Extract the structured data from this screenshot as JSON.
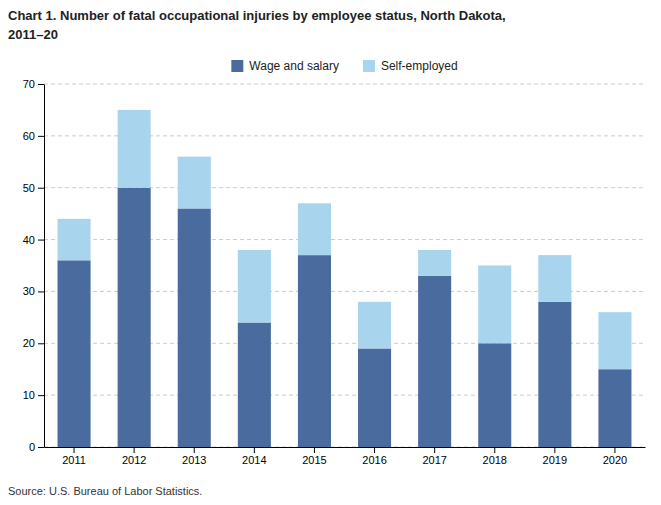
{
  "chart_data": {
    "type": "bar",
    "stacked": true,
    "title": "Chart 1. Number of fatal occupational injuries by employee status, North Dakota,\n2011–20",
    "source": "Source: U.S. Bureau of Labor Statistics.",
    "categories": [
      "2011",
      "2012",
      "2013",
      "2014",
      "2015",
      "2016",
      "2017",
      "2018",
      "2019",
      "2020"
    ],
    "series": [
      {
        "name": "Wage and salary",
        "color": "#4a6b9d",
        "values": [
          36,
          50,
          46,
          24,
          37,
          19,
          33,
          20,
          28,
          15
        ]
      },
      {
        "name": "Self-employed",
        "color": "#a8d4ed",
        "values": [
          8,
          15,
          10,
          14,
          10,
          9,
          5,
          15,
          9,
          11
        ]
      }
    ],
    "ylim": [
      0,
      70
    ],
    "yticks": [
      0,
      10,
      20,
      30,
      40,
      50,
      60,
      70
    ],
    "grid": true,
    "legend": "top"
  }
}
